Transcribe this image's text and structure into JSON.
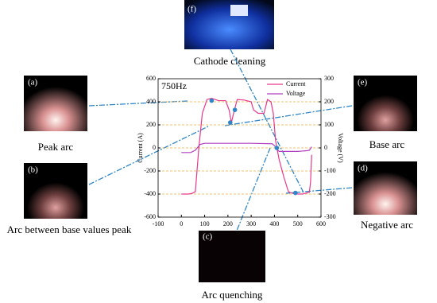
{
  "chart_data": {
    "type": "line",
    "annotation": "750Hz",
    "xlim": [
      -100,
      600
    ],
    "xticks": [
      -100,
      0,
      100,
      200,
      300,
      400,
      500,
      600
    ],
    "ylim": [
      -600,
      600
    ],
    "yticks": [
      -600,
      -400,
      -200,
      0,
      200,
      400,
      600
    ],
    "y2lim": [
      -300,
      300
    ],
    "y2ticks": [
      -300,
      -200,
      -100,
      0,
      100,
      200,
      300
    ],
    "y_label": "Current (A)",
    "y2_label": "Voltage (V)",
    "grid": true,
    "grid_color": "#f0b040",
    "legend": "upper right",
    "series": [
      {
        "name": "Current",
        "color": "#e8388a",
        "x": [
          0,
          30,
          45,
          60,
          75,
          90,
          110,
          130,
          160,
          190,
          205,
          215,
          228,
          240,
          270,
          300,
          310,
          330,
          355,
          370,
          385,
          395,
          405,
          420,
          440,
          460,
          480,
          500,
          520,
          540,
          550,
          555,
          560
        ],
        "values": [
          -400,
          -400,
          -395,
          -380,
          0,
          300,
          420,
          430,
          410,
          410,
          330,
          220,
          330,
          420,
          415,
          400,
          330,
          300,
          300,
          420,
          400,
          300,
          60,
          -100,
          -250,
          -380,
          -395,
          -400,
          -400,
          -390,
          -385,
          -300,
          -60
        ]
      },
      {
        "name": "Voltage",
        "color": "#b040c0",
        "axis": "y2",
        "x": [
          0,
          40,
          60,
          80,
          100,
          200,
          300,
          390,
          400,
          410,
          420,
          500,
          540,
          550,
          560
        ],
        "values": [
          -20,
          -20,
          -10,
          15,
          20,
          20,
          20,
          18,
          10,
          -5,
          -15,
          -15,
          -12,
          -10,
          5
        ]
      }
    ],
    "highlight_points": {
      "color": "#2e86c8",
      "x": [
        130,
        210,
        230,
        410,
        490
      ],
      "values": [
        410,
        220,
        330,
        0,
        -390
      ]
    }
  },
  "panels": [
    {
      "label": "(f)",
      "caption": "Cathode cleaning"
    },
    {
      "label": "(a)",
      "caption": "Peak arc"
    },
    {
      "label": "(b)",
      "caption": "Arc between base values peak"
    },
    {
      "label": "(e)",
      "caption": "Base arc"
    },
    {
      "label": "(d)",
      "caption": "Negative arc"
    },
    {
      "label": "(c)",
      "caption": "Arc quenching"
    }
  ]
}
